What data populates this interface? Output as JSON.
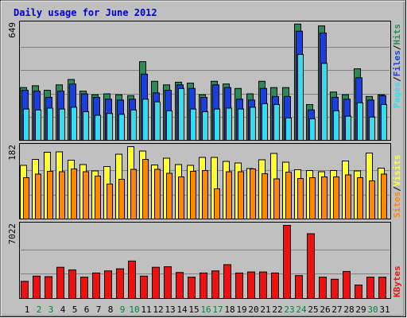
{
  "title": "Daily usage for June 2012",
  "colors": {
    "background": "#c0c0c0",
    "title": "#0000cc",
    "hits": "#2a8a5a",
    "files": "#1a3fe0",
    "pages": "#33ddee",
    "visits": "#ffff33",
    "sites": "#ff8800",
    "kbytes": "#ee1111",
    "weekend": "#008040"
  },
  "panels": {
    "top": {
      "ymax_label": "649",
      "legend": [
        "Pages",
        "Files",
        "Hits"
      ]
    },
    "middle": {
      "ymax_label": "182",
      "legend": [
        "Sites",
        "Visits"
      ]
    },
    "bottom": {
      "ymax_label": "7022",
      "legend": [
        "KBytes"
      ]
    }
  },
  "chart_data": [
    {
      "type": "bar",
      "categories": [
        "1",
        "2",
        "3",
        "4",
        "5",
        "6",
        "7",
        "8",
        "9",
        "10",
        "11",
        "12",
        "13",
        "14",
        "15",
        "16",
        "17",
        "18",
        "19",
        "20",
        "21",
        "22",
        "23",
        "24",
        "25",
        "26",
        "27",
        "28",
        "29",
        "30",
        "31"
      ],
      "ylim": [
        0,
        649
      ],
      "series": [
        {
          "name": "Hits",
          "values": [
            295,
            305,
            280,
            310,
            340,
            275,
            255,
            260,
            255,
            250,
            440,
            330,
            310,
            325,
            320,
            255,
            330,
            315,
            290,
            260,
            330,
            295,
            295,
            650,
            200,
            640,
            270,
            255,
            400,
            245,
            255
          ]
        },
        {
          "name": "Files",
          "values": [
            280,
            275,
            240,
            275,
            315,
            260,
            240,
            230,
            225,
            230,
            370,
            265,
            280,
            310,
            290,
            240,
            310,
            295,
            230,
            225,
            290,
            245,
            245,
            610,
            170,
            600,
            240,
            230,
            350,
            225,
            250
          ]
        },
        {
          "name": "Pages",
          "values": [
            175,
            170,
            180,
            175,
            185,
            160,
            140,
            150,
            145,
            170,
            230,
            215,
            165,
            290,
            175,
            160,
            175,
            180,
            175,
            185,
            205,
            200,
            125,
            480,
            120,
            430,
            165,
            135,
            210,
            130,
            200
          ]
        }
      ]
    },
    {
      "type": "bar",
      "categories": [
        "1",
        "2",
        "3",
        "4",
        "5",
        "6",
        "7",
        "8",
        "9",
        "10",
        "11",
        "12",
        "13",
        "14",
        "15",
        "16",
        "17",
        "18",
        "19",
        "20",
        "21",
        "22",
        "23",
        "24",
        "25",
        "26",
        "27",
        "28",
        "29",
        "30",
        "31"
      ],
      "ylim": [
        0,
        182
      ],
      "series": [
        {
          "name": "Visits",
          "values": [
            135,
            150,
            168,
            169,
            148,
            137,
            121,
            132,
            163,
            182,
            171,
            136,
            153,
            137,
            135,
            155,
            155,
            145,
            141,
            127,
            149,
            165,
            143,
            124,
            122,
            119,
            122,
            146,
            121,
            166,
            128
          ]
        },
        {
          "name": "Sites",
          "values": [
            104,
            113,
            120,
            119,
            126,
            119,
            108,
            88,
            100,
            125,
            150,
            125,
            115,
            106,
            120,
            122,
            76,
            119,
            119,
            126,
            114,
            101,
            118,
            102,
            104,
            106,
            106,
            111,
            104,
            96,
            113
          ]
        }
      ]
    },
    {
      "type": "bar",
      "categories": [
        "1",
        "2",
        "3",
        "4",
        "5",
        "6",
        "7",
        "8",
        "9",
        "10",
        "11",
        "12",
        "13",
        "14",
        "15",
        "16",
        "17",
        "18",
        "19",
        "20",
        "21",
        "22",
        "23",
        "24",
        "25",
        "26",
        "27",
        "28",
        "29",
        "30",
        "31"
      ],
      "ylim": [
        0,
        7022
      ],
      "series": [
        {
          "name": "KBytes",
          "values": [
            1650,
            2150,
            2100,
            3000,
            2750,
            2050,
            2450,
            2650,
            2850,
            3600,
            2150,
            3000,
            3050,
            2500,
            2050,
            2450,
            2650,
            3250,
            2450,
            2550,
            2550,
            2450,
            7022,
            2200,
            6220,
            2050,
            1850,
            2600,
            1300,
            2050,
            2050
          ]
        }
      ]
    }
  ]
}
